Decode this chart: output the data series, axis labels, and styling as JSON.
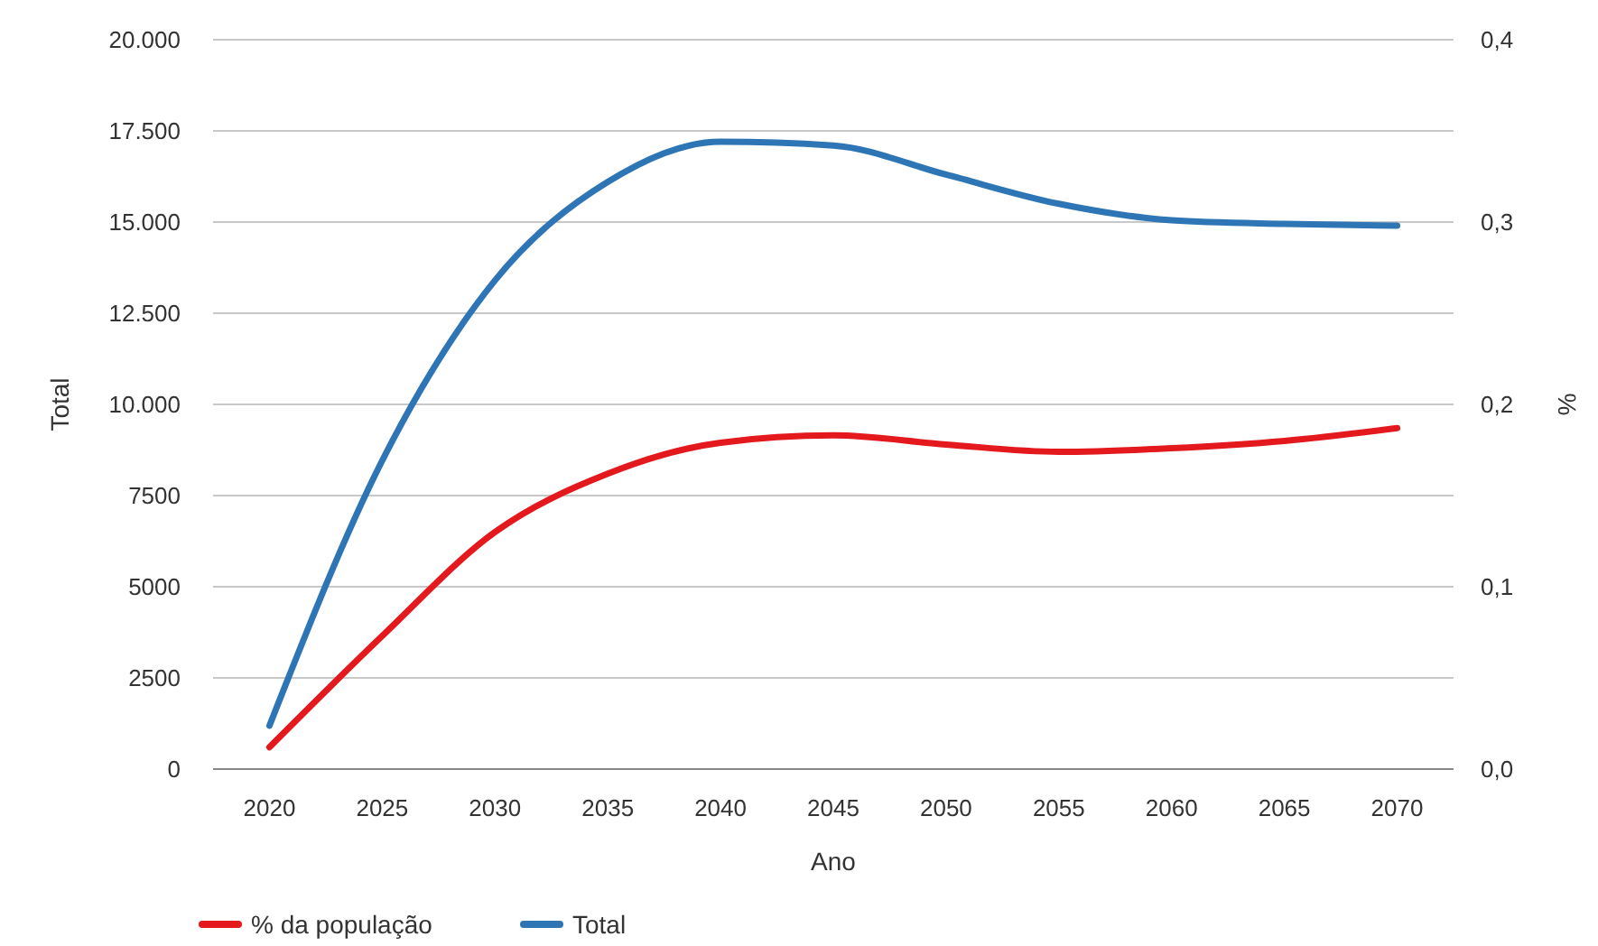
{
  "chart_data": {
    "type": "line",
    "xlabel": "Ano",
    "ylabel": "Total",
    "y2label": "%",
    "categories": [
      "2020",
      "2025",
      "2030",
      "2035",
      "2040",
      "2045",
      "2050",
      "2055",
      "2060",
      "2065",
      "2070"
    ],
    "series": [
      {
        "name": "% da população",
        "color": "#e3191e",
        "axis": "y2",
        "values": [
          0.012,
          0.073,
          0.13,
          0.162,
          0.179,
          0.183,
          0.178,
          0.174,
          0.176,
          0.18,
          0.187
        ]
      },
      {
        "name": "Total",
        "color": "#2e75b6",
        "values": [
          1190,
          8460,
          13400,
          16100,
          17200,
          17100,
          16300,
          15500,
          15050,
          14950,
          14900
        ]
      }
    ],
    "ylim": [
      0,
      20000
    ],
    "yticks": [
      {
        "value": 0,
        "label": "0"
      },
      {
        "value": 2500,
        "label": "2500"
      },
      {
        "value": 5000,
        "label": "5000"
      },
      {
        "value": 7500,
        "label": "7500"
      },
      {
        "value": 10000,
        "label": "10.000"
      },
      {
        "value": 12500,
        "label": "12.500"
      },
      {
        "value": 15000,
        "label": "15.000"
      },
      {
        "value": 17500,
        "label": "17.500"
      },
      {
        "value": 20000,
        "label": "20.000"
      }
    ],
    "y2lim": [
      0,
      0.4
    ],
    "y2ticks": [
      {
        "value": 0,
        "label": "0,0"
      },
      {
        "value": 0.1,
        "label": "0,1"
      },
      {
        "value": 0.2,
        "label": "0,2"
      },
      {
        "value": 0.3,
        "label": "0,3"
      },
      {
        "value": 0.4,
        "label": "0,4"
      }
    ],
    "grid": "y",
    "legend": "bottom left",
    "marker": "none",
    "line_style": "solid"
  }
}
